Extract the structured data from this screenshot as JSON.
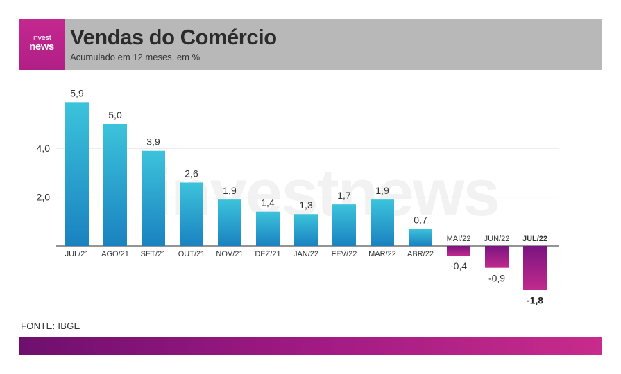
{
  "header": {
    "logo_line1": "invest",
    "logo_line2": "news",
    "title": "Vendas do Comércio",
    "subtitle": "Acumulado em 12 meses, em %"
  },
  "watermark": "investnews",
  "source": "FONTE: IBGE",
  "colors": {
    "positive_top": "#3cc3db",
    "positive_bottom": "#1a82c0",
    "negative_top": "#7a1480",
    "negative_bottom": "#c02a8d",
    "header_bg": "#b8b8b8",
    "brand": "#c4288f"
  },
  "chart_data": {
    "type": "bar",
    "categories": [
      "JUL/21",
      "AGO/21",
      "SET/21",
      "OUT/21",
      "NOV/21",
      "DEZ/21",
      "JAN/22",
      "FEV/22",
      "MAR/22",
      "ABR/22",
      "MAI/22",
      "JUN/22",
      "JUL/22"
    ],
    "values": [
      5.9,
      5.0,
      3.9,
      2.6,
      1.9,
      1.4,
      1.3,
      1.7,
      1.9,
      0.7,
      -0.4,
      -0.9,
      -1.8
    ],
    "value_labels": [
      "5,9",
      "5,0",
      "3,9",
      "2,6",
      "1,9",
      "1,4",
      "1,3",
      "1,7",
      "1,9",
      "0,7",
      "-0,4",
      "-0,9",
      "-1,8"
    ],
    "highlight_index": 12,
    "y_ticks": [
      2.0,
      4.0
    ],
    "y_tick_labels": [
      "2,0",
      "4,0"
    ],
    "ylim": [
      -1.8,
      5.9
    ],
    "grid": true,
    "title": "Vendas do Comércio",
    "ylabel": "",
    "xlabel": ""
  }
}
